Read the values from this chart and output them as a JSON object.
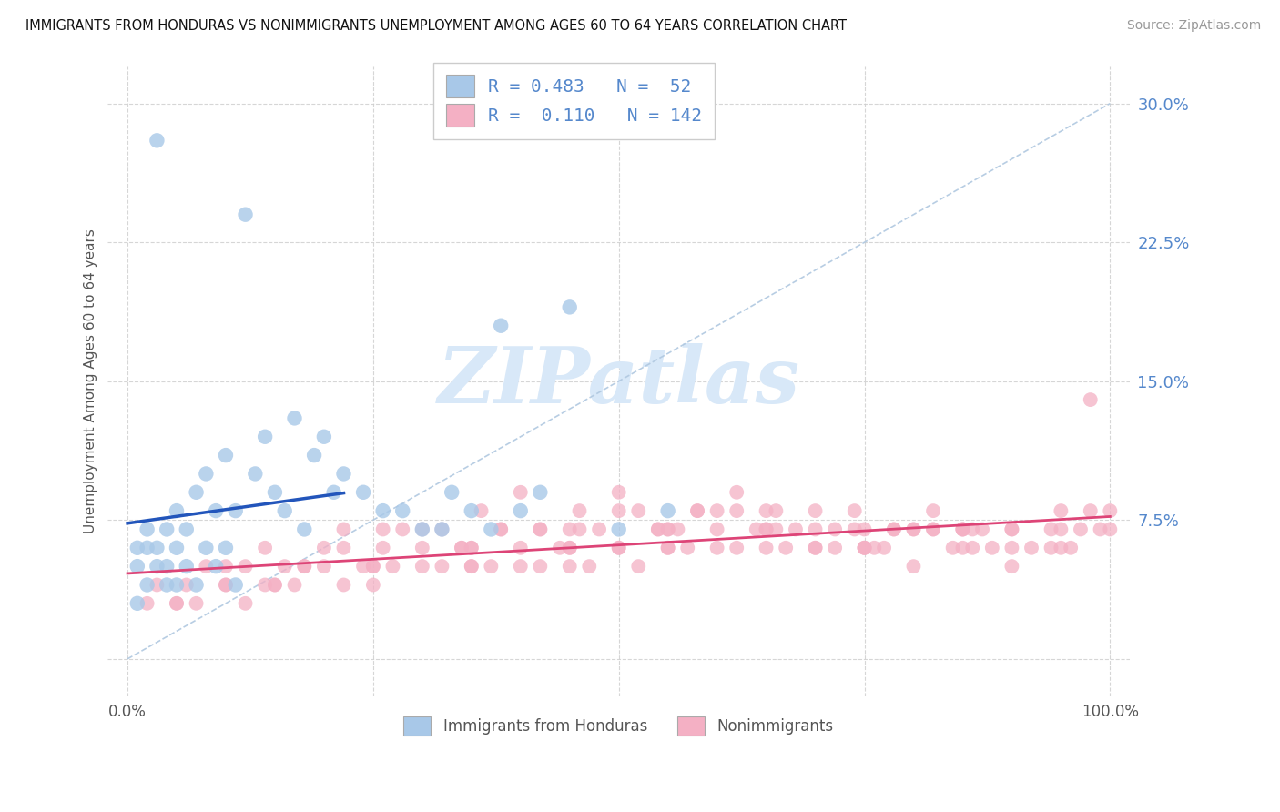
{
  "title": "IMMIGRANTS FROM HONDURAS VS NONIMMIGRANTS UNEMPLOYMENT AMONG AGES 60 TO 64 YEARS CORRELATION CHART",
  "source": "Source: ZipAtlas.com",
  "ylabel": "Unemployment Among Ages 60 to 64 years",
  "xlim": [
    -2,
    102
  ],
  "ylim": [
    -2,
    32
  ],
  "yticks": [
    0,
    7.5,
    15.0,
    22.5,
    30.0
  ],
  "xticks_all": [
    0,
    25,
    50,
    75,
    100
  ],
  "blue_color": "#a8c8e8",
  "pink_color": "#f4b0c4",
  "blue_line_color": "#2255bb",
  "pink_line_color": "#dd4477",
  "ref_line_color": "#b0c8e0",
  "axis_tick_color": "#5588cc",
  "label_color": "#555555",
  "watermark_text": "ZIPatlas",
  "watermark_color": "#d8e8f8",
  "legend1_text": "R = 0.483   N =  52",
  "legend2_text": "R =  0.110   N = 142",
  "series1_label": "Immigrants from Honduras",
  "series2_label": "Nonimmigrants",
  "background_color": "#ffffff",
  "blue_x": [
    1,
    1,
    1,
    2,
    2,
    2,
    3,
    3,
    3,
    4,
    4,
    4,
    5,
    5,
    5,
    6,
    6,
    7,
    7,
    8,
    8,
    9,
    9,
    10,
    10,
    11,
    11,
    12,
    13,
    14,
    15,
    16,
    17,
    18,
    19,
    20,
    21,
    22,
    24,
    26,
    28,
    30,
    32,
    33,
    35,
    37,
    38,
    40,
    42,
    45,
    50,
    55
  ],
  "blue_y": [
    3,
    5,
    6,
    4,
    6,
    7,
    5,
    6,
    28,
    4,
    5,
    7,
    4,
    6,
    8,
    5,
    7,
    4,
    9,
    6,
    10,
    5,
    8,
    6,
    11,
    4,
    8,
    24,
    10,
    12,
    9,
    8,
    13,
    7,
    11,
    12,
    9,
    10,
    9,
    8,
    8,
    7,
    7,
    9,
    8,
    7,
    18,
    8,
    9,
    19,
    7,
    8
  ],
  "pink_x": [
    3,
    5,
    8,
    10,
    12,
    14,
    16,
    18,
    20,
    22,
    24,
    26,
    28,
    30,
    32,
    34,
    36,
    38,
    40,
    40,
    42,
    44,
    46,
    48,
    50,
    50,
    52,
    54,
    56,
    58,
    60,
    60,
    62,
    64,
    66,
    68,
    70,
    70,
    72,
    74,
    76,
    78,
    80,
    80,
    82,
    84,
    86,
    88,
    90,
    90,
    92,
    94,
    96,
    98,
    99,
    100,
    2,
    6,
    10,
    14,
    18,
    22,
    26,
    30,
    34,
    38,
    42,
    46,
    50,
    54,
    58,
    62,
    66,
    70,
    74,
    78,
    82,
    86,
    90,
    94,
    98,
    35,
    45,
    55,
    65,
    75,
    85,
    95,
    25,
    35,
    45,
    55,
    65,
    75,
    85,
    10,
    20,
    30,
    40,
    50,
    60,
    70,
    80,
    90,
    100,
    15,
    25,
    35,
    45,
    55,
    65,
    75,
    85,
    95,
    5,
    15,
    25,
    35,
    45,
    55,
    65,
    75,
    85,
    95,
    7,
    17,
    27,
    37,
    47,
    57,
    67,
    77,
    87,
    97,
    12,
    22,
    32,
    42,
    52,
    62,
    72,
    82
  ],
  "pink_y": [
    4,
    3,
    5,
    4,
    5,
    6,
    5,
    5,
    6,
    7,
    5,
    7,
    7,
    6,
    7,
    6,
    8,
    7,
    9,
    5,
    7,
    6,
    8,
    7,
    9,
    6,
    8,
    7,
    7,
    8,
    8,
    6,
    9,
    7,
    8,
    7,
    8,
    6,
    7,
    8,
    6,
    7,
    7,
    5,
    8,
    6,
    7,
    6,
    7,
    5,
    6,
    7,
    6,
    14,
    7,
    8,
    3,
    4,
    5,
    4,
    5,
    6,
    6,
    7,
    6,
    7,
    7,
    7,
    8,
    7,
    8,
    8,
    7,
    7,
    7,
    7,
    7,
    6,
    6,
    6,
    8,
    6,
    7,
    7,
    8,
    7,
    7,
    8,
    5,
    6,
    6,
    7,
    7,
    6,
    7,
    4,
    5,
    5,
    6,
    6,
    7,
    6,
    7,
    7,
    7,
    4,
    5,
    5,
    6,
    6,
    7,
    6,
    7,
    6,
    3,
    4,
    4,
    5,
    5,
    6,
    6,
    6,
    6,
    7,
    3,
    4,
    5,
    5,
    5,
    6,
    6,
    6,
    7,
    7,
    3,
    4,
    5,
    5,
    5,
    6,
    6,
    7
  ]
}
